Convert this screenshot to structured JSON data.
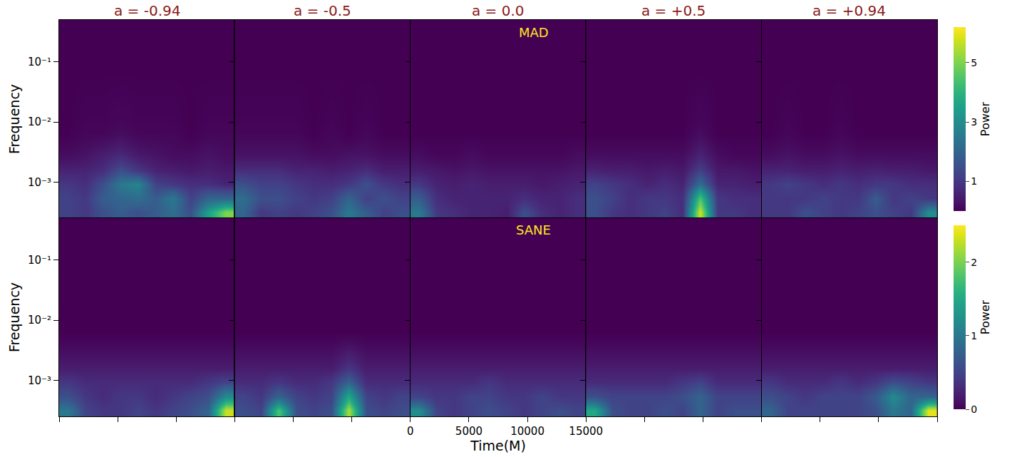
{
  "chart_data": [
    {
      "type": "heatmap",
      "label": "MAD",
      "log": "y",
      "xlim": [
        0,
        15000
      ],
      "xticks": [
        0,
        5000,
        10000,
        15000
      ],
      "ylim": [
        0.00025,
        0.5
      ],
      "yticks": [
        {
          "value": 0.001,
          "label": "10⁻³"
        },
        {
          "value": 0.01,
          "label": "10⁻²"
        },
        {
          "value": 0.1,
          "label": "10⁻¹"
        }
      ],
      "ylabel": "Frequency",
      "x_edges": [
        0,
        1500,
        3000,
        4500,
        6000,
        7500,
        9000,
        10500,
        12000,
        13500,
        15000
      ],
      "y_edges": [
        0.00025,
        0.0004,
        0.0007,
        0.0012,
        0.002,
        0.004,
        0.01,
        0.5
      ],
      "zlim": [
        0,
        6.2
      ],
      "colorbar": {
        "label": "Power",
        "ticks": [
          1,
          3,
          5
        ]
      },
      "panels": [
        {
          "title": "a = -0.94",
          "tick_labels": "y",
          "z": [
            [
              1.2,
              1.0,
              1.5,
              1.8,
              1.5,
              1.8,
              2.2,
              1.5,
              3.5,
              5.0
            ],
            [
              1.2,
              1.0,
              1.8,
              2.0,
              2.2,
              1.8,
              2.5,
              1.2,
              2.0,
              2.0
            ],
            [
              1.0,
              0.8,
              1.5,
              2.5,
              2.8,
              1.2,
              1.0,
              0.8,
              0.8,
              0.6
            ],
            [
              0.6,
              0.6,
              0.8,
              1.5,
              1.0,
              0.6,
              0.5,
              0.4,
              0.5,
              0.4
            ],
            [
              0.2,
              0.3,
              0.5,
              0.7,
              0.4,
              0.3,
              0.2,
              0.2,
              0.3,
              0.2
            ],
            [
              0,
              0.1,
              0.1,
              0.2,
              0.1,
              0.1,
              0.1,
              0,
              0.1,
              0.1
            ],
            [
              0,
              0,
              0,
              0,
              0,
              0,
              0,
              0,
              0,
              0
            ]
          ]
        },
        {
          "title": "a = -0.5",
          "tick_labels": false,
          "z": [
            [
              2.0,
              1.0,
              1.2,
              1.0,
              1.2,
              1.5,
              2.5,
              1.8,
              1.2,
              1.5
            ],
            [
              2.2,
              1.5,
              1.5,
              1.2,
              1.0,
              1.2,
              2.0,
              1.2,
              1.5,
              1.2
            ],
            [
              1.5,
              1.2,
              1.2,
              1.0,
              0.8,
              0.8,
              1.0,
              1.5,
              1.0,
              0.8
            ],
            [
              0.8,
              0.8,
              0.8,
              0.6,
              0.6,
              0.5,
              0.6,
              0.8,
              0.5,
              0.5
            ],
            [
              0.3,
              0.3,
              0.3,
              0.3,
              0.2,
              0.2,
              0.3,
              0.3,
              0.2,
              0.2
            ],
            [
              0.1,
              0.1,
              0.1,
              0.1,
              0,
              0.1,
              0,
              0.1,
              0,
              0
            ],
            [
              0,
              0,
              0,
              0,
              0,
              0,
              0,
              0,
              0,
              0
            ]
          ]
        },
        {
          "title": "a = 0.0",
          "tick_labels": false,
          "z": [
            [
              2.5,
              1.0,
              0.8,
              0.6,
              0.6,
              0.5,
              1.5,
              0.8,
              0.6,
              0.8
            ],
            [
              1.8,
              0.8,
              0.6,
              0.6,
              0.6,
              0.6,
              0.8,
              0.6,
              0.6,
              0.8
            ],
            [
              1.0,
              0.6,
              0.5,
              0.6,
              0.5,
              0.5,
              0.5,
              0.4,
              0.5,
              0.6
            ],
            [
              0.5,
              0.4,
              0.3,
              0.4,
              0.3,
              0.3,
              0.3,
              0.3,
              0.3,
              0.4
            ],
            [
              0.2,
              0.1,
              0.1,
              0.2,
              0.1,
              0.1,
              0.1,
              0.1,
              0.1,
              0.2
            ],
            [
              0,
              0,
              0,
              0,
              0,
              0,
              0,
              0,
              0,
              0
            ],
            [
              0,
              0,
              0,
              0,
              0,
              0,
              0,
              0,
              0,
              0
            ]
          ]
        },
        {
          "title": "a = +0.5",
          "tick_labels": false,
          "z": [
            [
              1.5,
              1.0,
              0.8,
              1.0,
              1.2,
              0.8,
              5.8,
              1.0,
              1.0,
              0.8
            ],
            [
              1.5,
              1.2,
              0.8,
              1.0,
              1.0,
              0.8,
              4.5,
              1.0,
              0.8,
              0.8
            ],
            [
              1.2,
              1.0,
              0.8,
              0.6,
              0.8,
              0.6,
              2.2,
              0.6,
              0.6,
              0.5
            ],
            [
              0.6,
              0.5,
              0.5,
              0.4,
              0.5,
              0.4,
              1.2,
              0.4,
              0.4,
              0.3
            ],
            [
              0.2,
              0.2,
              0.2,
              0.2,
              0.2,
              0.2,
              0.6,
              0.2,
              0.1,
              0.1
            ],
            [
              0,
              0,
              0,
              0,
              0,
              0,
              0.2,
              0,
              0,
              0
            ],
            [
              0,
              0,
              0,
              0,
              0,
              0,
              0,
              0,
              0,
              0
            ]
          ]
        },
        {
          "title": "a = +0.94",
          "tick_labels": false,
          "z": [
            [
              1.0,
              1.0,
              1.5,
              1.2,
              1.0,
              1.2,
              1.5,
              1.2,
              1.0,
              3.0
            ],
            [
              1.0,
              1.0,
              1.0,
              1.2,
              1.0,
              1.0,
              1.8,
              1.0,
              1.2,
              1.0
            ],
            [
              1.0,
              1.2,
              1.0,
              0.8,
              1.0,
              0.8,
              1.0,
              1.0,
              0.8,
              0.8
            ],
            [
              0.6,
              0.6,
              0.5,
              0.5,
              0.6,
              0.5,
              0.6,
              0.5,
              0.5,
              0.4
            ],
            [
              0.2,
              0.3,
              0.2,
              0.2,
              0.3,
              0.2,
              0.2,
              0.2,
              0.2,
              0.2
            ],
            [
              0,
              0.1,
              0,
              0,
              0.1,
              0,
              0,
              0,
              0,
              0
            ],
            [
              0,
              0,
              0,
              0,
              0,
              0,
              0,
              0,
              0,
              0
            ]
          ]
        }
      ]
    },
    {
      "type": "heatmap",
      "label": "SANE",
      "log": "y",
      "xlim": [
        0,
        15000
      ],
      "xticks": [
        0,
        5000,
        10000,
        15000
      ],
      "ylim": [
        0.00025,
        0.5
      ],
      "yticks": [
        {
          "value": 0.001,
          "label": "10⁻³"
        },
        {
          "value": 0.01,
          "label": "10⁻²"
        },
        {
          "value": 0.1,
          "label": "10⁻¹"
        }
      ],
      "ylabel": "Frequency",
      "xlabel": "Time(M)",
      "x_edges": [
        0,
        1500,
        3000,
        4500,
        6000,
        7500,
        9000,
        10500,
        12000,
        13500,
        15000
      ],
      "y_edges": [
        0.00025,
        0.0004,
        0.0007,
        0.0012,
        0.002,
        0.004,
        0.01,
        0.5
      ],
      "zlim": [
        0,
        2.5
      ],
      "colorbar": {
        "label": "Power",
        "ticks": [
          0,
          1,
          2
        ]
      },
      "panels": [
        {
          "tick_labels": "y",
          "z": [
            [
              1.0,
              0.5,
              0.4,
              0.4,
              0.5,
              0.4,
              0.5,
              0.6,
              0.8,
              2.3
            ],
            [
              0.6,
              0.4,
              0.3,
              0.4,
              0.4,
              0.3,
              0.4,
              0.5,
              0.6,
              1.2
            ],
            [
              0.4,
              0.3,
              0.3,
              0.3,
              0.3,
              0.3,
              0.3,
              0.3,
              0.4,
              0.5
            ],
            [
              0.2,
              0.2,
              0.2,
              0.2,
              0.2,
              0.2,
              0.2,
              0.2,
              0.2,
              0.2
            ],
            [
              0.1,
              0.1,
              0.1,
              0.1,
              0.1,
              0.1,
              0.1,
              0.1,
              0.1,
              0.1
            ],
            [
              0,
              0,
              0,
              0,
              0,
              0,
              0,
              0,
              0,
              0
            ],
            [
              0,
              0,
              0,
              0,
              0,
              0,
              0,
              0,
              0,
              0
            ]
          ]
        },
        {
          "tick_labels": false,
          "z": [
            [
              0.6,
              0.5,
              1.8,
              0.6,
              0.5,
              0.6,
              2.2,
              0.6,
              0.5,
              0.6
            ],
            [
              0.5,
              0.4,
              0.8,
              0.5,
              0.4,
              0.5,
              1.5,
              0.5,
              0.4,
              0.5
            ],
            [
              0.3,
              0.3,
              0.4,
              0.3,
              0.3,
              0.4,
              0.8,
              0.3,
              0.3,
              0.3
            ],
            [
              0.2,
              0.2,
              0.2,
              0.2,
              0.2,
              0.2,
              0.4,
              0.2,
              0.2,
              0.2
            ],
            [
              0.1,
              0.1,
              0.1,
              0.1,
              0.1,
              0.1,
              0.2,
              0.1,
              0.1,
              0.1
            ],
            [
              0,
              0,
              0,
              0,
              0,
              0,
              0,
              0,
              0,
              0
            ],
            [
              0,
              0,
              0,
              0,
              0,
              0,
              0,
              0,
              0,
              0
            ]
          ]
        },
        {
          "tick_labels": "x",
          "z": [
            [
              1.2,
              0.5,
              0.4,
              0.5,
              0.6,
              0.5,
              0.4,
              0.5,
              0.6,
              0.5
            ],
            [
              0.5,
              0.4,
              0.4,
              0.5,
              0.5,
              0.4,
              0.4,
              0.5,
              0.4,
              0.4
            ],
            [
              0.3,
              0.3,
              0.3,
              0.3,
              0.4,
              0.3,
              0.3,
              0.3,
              0.3,
              0.3
            ],
            [
              0.2,
              0.2,
              0.2,
              0.2,
              0.2,
              0.2,
              0.2,
              0.2,
              0.2,
              0.2
            ],
            [
              0.1,
              0.1,
              0.1,
              0.1,
              0.1,
              0.1,
              0.1,
              0.1,
              0.1,
              0.1
            ],
            [
              0,
              0,
              0,
              0,
              0,
              0,
              0,
              0,
              0,
              0
            ],
            [
              0,
              0,
              0,
              0,
              0,
              0,
              0,
              0,
              0,
              0
            ]
          ]
        },
        {
          "tick_labels": false,
          "z": [
            [
              1.5,
              0.6,
              0.5,
              0.5,
              0.6,
              0.5,
              0.8,
              0.5,
              0.6,
              0.6
            ],
            [
              0.6,
              0.5,
              0.5,
              0.5,
              0.5,
              0.6,
              0.8,
              0.5,
              0.5,
              0.5
            ],
            [
              0.3,
              0.3,
              0.3,
              0.3,
              0.3,
              0.4,
              0.5,
              0.3,
              0.3,
              0.3
            ],
            [
              0.2,
              0.2,
              0.2,
              0.2,
              0.2,
              0.2,
              0.2,
              0.2,
              0.2,
              0.2
            ],
            [
              0.1,
              0.1,
              0.1,
              0.1,
              0.1,
              0.1,
              0.1,
              0.1,
              0.1,
              0.1
            ],
            [
              0,
              0,
              0,
              0,
              0,
              0,
              0,
              0,
              0,
              0
            ],
            [
              0,
              0,
              0,
              0,
              0,
              0,
              0,
              0,
              0,
              0
            ]
          ]
        },
        {
          "tick_labels": false,
          "z": [
            [
              0.8,
              0.5,
              0.5,
              0.5,
              0.5,
              0.5,
              0.6,
              1.0,
              0.8,
              2.4
            ],
            [
              0.6,
              0.5,
              0.4,
              0.5,
              0.5,
              0.5,
              0.7,
              1.2,
              0.8,
              0.8
            ],
            [
              0.4,
              0.3,
              0.3,
              0.3,
              0.4,
              0.3,
              0.4,
              0.6,
              0.5,
              0.4
            ],
            [
              0.2,
              0.2,
              0.2,
              0.2,
              0.2,
              0.2,
              0.2,
              0.2,
              0.2,
              0.2
            ],
            [
              0.1,
              0.1,
              0.1,
              0.1,
              0.1,
              0.1,
              0.1,
              0.1,
              0.1,
              0.1
            ],
            [
              0,
              0,
              0,
              0,
              0,
              0,
              0,
              0,
              0,
              0
            ],
            [
              0,
              0,
              0,
              0,
              0,
              0,
              0,
              0,
              0,
              0
            ]
          ]
        }
      ]
    }
  ]
}
